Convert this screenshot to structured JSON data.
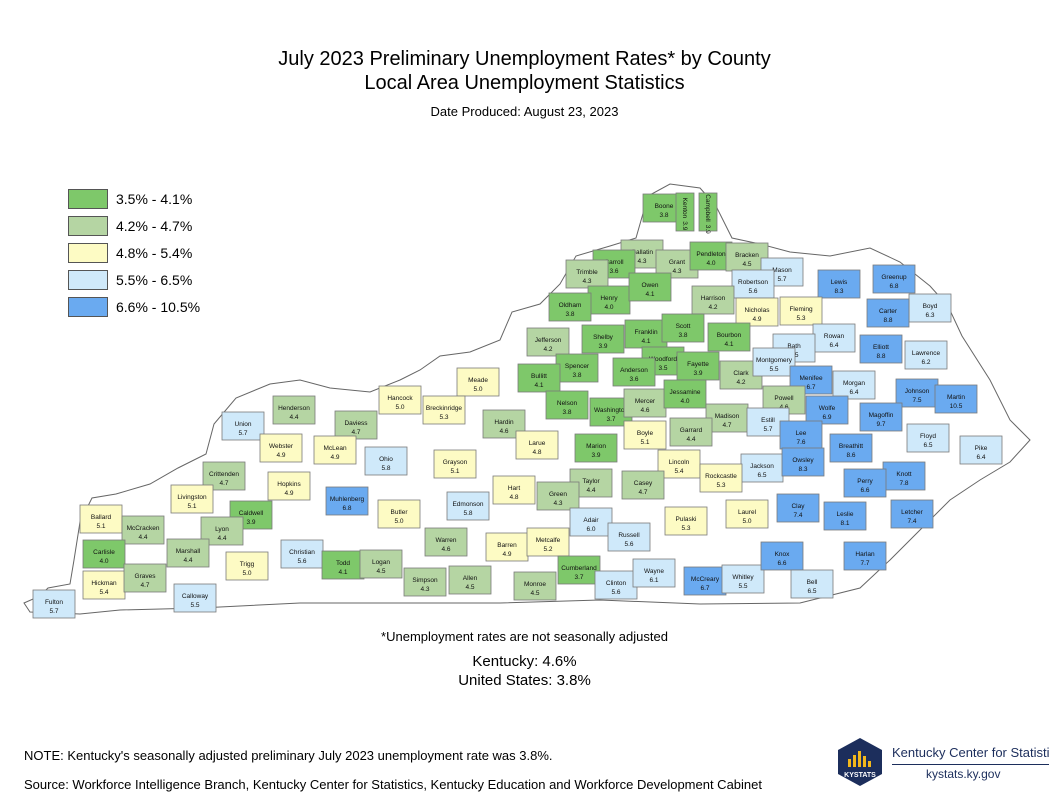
{
  "title": "July 2023 Preliminary Unemployment Rates* by County",
  "subtitle": "Local Area Unemployment Statistics",
  "date_produced": "Date Produced:  August 23, 2023",
  "legend": [
    {
      "label": "3.5% - 4.1%",
      "color": "#7ec86a"
    },
    {
      "label": "4.2% - 4.7%",
      "color": "#b5d5a3"
    },
    {
      "label": "4.8% - 5.4%",
      "color": "#fdfbc4"
    },
    {
      "label": "5.5% - 6.5%",
      "color": "#cfe9fa"
    },
    {
      "label": "6.6% - 10.5%",
      "color": "#6aaaf0"
    }
  ],
  "counties": [
    {
      "name": "Boone",
      "rate": "3.8"
    },
    {
      "name": "Kenton",
      "rate": "3.9"
    },
    {
      "name": "Campbell",
      "rate": "3.9"
    },
    {
      "name": "Gallatin",
      "rate": "4.3"
    },
    {
      "name": "Carroll",
      "rate": "3.6"
    },
    {
      "name": "Trimble",
      "rate": "4.3"
    },
    {
      "name": "Grant",
      "rate": "4.3"
    },
    {
      "name": "Pendleton",
      "rate": "4.0"
    },
    {
      "name": "Bracken",
      "rate": "4.5"
    },
    {
      "name": "Mason",
      "rate": "5.7"
    },
    {
      "name": "Lewis",
      "rate": "8.3"
    },
    {
      "name": "Greenup",
      "rate": "6.8"
    },
    {
      "name": "Boyd",
      "rate": "6.3"
    },
    {
      "name": "Robertson",
      "rate": "5.6"
    },
    {
      "name": "Henry",
      "rate": "4.0"
    },
    {
      "name": "Owen",
      "rate": "4.1"
    },
    {
      "name": "Oldham",
      "rate": "3.8"
    },
    {
      "name": "Harrison",
      "rate": "4.2"
    },
    {
      "name": "Fleming",
      "rate": "5.3"
    },
    {
      "name": "Carter",
      "rate": "8.8"
    },
    {
      "name": "Nicholas",
      "rate": "4.9"
    },
    {
      "name": "Shelby",
      "rate": "3.9"
    },
    {
      "name": "Franklin",
      "rate": "4.1"
    },
    {
      "name": "Scott",
      "rate": "3.8"
    },
    {
      "name": "Bourbon",
      "rate": "4.1"
    },
    {
      "name": "Rowan",
      "rate": "6.4"
    },
    {
      "name": "Elliott",
      "rate": "8.8"
    },
    {
      "name": "Lawrence",
      "rate": "6.2"
    },
    {
      "name": "Jefferson",
      "rate": "4.2"
    },
    {
      "name": "Bath",
      "rate": "6.5"
    },
    {
      "name": "Woodford",
      "rate": "3.5"
    },
    {
      "name": "Spencer",
      "rate": "3.8"
    },
    {
      "name": "Anderson",
      "rate": "3.6"
    },
    {
      "name": "Fayette",
      "rate": "3.9"
    },
    {
      "name": "Clark",
      "rate": "4.2"
    },
    {
      "name": "Montgomery",
      "rate": "5.5"
    },
    {
      "name": "Menifee",
      "rate": "6.7"
    },
    {
      "name": "Morgan",
      "rate": "6.4"
    },
    {
      "name": "Johnson",
      "rate": "7.5"
    },
    {
      "name": "Martin",
      "rate": "10.5"
    },
    {
      "name": "Bullitt",
      "rate": "4.1"
    },
    {
      "name": "Meade",
      "rate": "5.0"
    },
    {
      "name": "Hancock",
      "rate": "5.0"
    },
    {
      "name": "Breckinridge",
      "rate": "5.3"
    },
    {
      "name": "Nelson",
      "rate": "3.8"
    },
    {
      "name": "Washington",
      "rate": "3.7"
    },
    {
      "name": "Mercer",
      "rate": "4.6"
    },
    {
      "name": "Jessamine",
      "rate": "4.0"
    },
    {
      "name": "Powell",
      "rate": "4.6"
    },
    {
      "name": "Wolfe",
      "rate": "6.9"
    },
    {
      "name": "Magoffin",
      "rate": "9.7"
    },
    {
      "name": "Floyd",
      "rate": "6.5"
    },
    {
      "name": "Henderson",
      "rate": "4.4"
    },
    {
      "name": "Daviess",
      "rate": "4.7"
    },
    {
      "name": "Union",
      "rate": "5.7"
    },
    {
      "name": "Hardin",
      "rate": "4.6"
    },
    {
      "name": "Madison",
      "rate": "4.7"
    },
    {
      "name": "Garrard",
      "rate": "4.4"
    },
    {
      "name": "Estill",
      "rate": "5.7"
    },
    {
      "name": "Lee",
      "rate": "7.6"
    },
    {
      "name": "Breathitt",
      "rate": "8.6"
    },
    {
      "name": "Pike",
      "rate": "6.4"
    },
    {
      "name": "Boyle",
      "rate": "5.1"
    },
    {
      "name": "Larue",
      "rate": "4.8"
    },
    {
      "name": "Marion",
      "rate": "3.9"
    },
    {
      "name": "Webster",
      "rate": "4.9"
    },
    {
      "name": "McLean",
      "rate": "4.9"
    },
    {
      "name": "Ohio",
      "rate": "5.8"
    },
    {
      "name": "Grayson",
      "rate": "5.1"
    },
    {
      "name": "Lincoln",
      "rate": "5.4"
    },
    {
      "name": "Jackson",
      "rate": "6.5"
    },
    {
      "name": "Owsley",
      "rate": "8.3"
    },
    {
      "name": "Knott",
      "rate": "7.8"
    },
    {
      "name": "Crittenden",
      "rate": "4.7"
    },
    {
      "name": "Hopkins",
      "rate": "4.9"
    },
    {
      "name": "Hart",
      "rate": "4.8"
    },
    {
      "name": "Taylor",
      "rate": "4.4"
    },
    {
      "name": "Casey",
      "rate": "4.7"
    },
    {
      "name": "Rockcastle",
      "rate": "5.3"
    },
    {
      "name": "Perry",
      "rate": "6.6"
    },
    {
      "name": "Livingston",
      "rate": "5.1"
    },
    {
      "name": "Caldwell",
      "rate": "3.9"
    },
    {
      "name": "Muhlenberg",
      "rate": "6.8"
    },
    {
      "name": "Green",
      "rate": "4.3"
    },
    {
      "name": "Ballard",
      "rate": "5.1"
    },
    {
      "name": "McCracken",
      "rate": "4.4"
    },
    {
      "name": "Lyon",
      "rate": "4.4"
    },
    {
      "name": "Butler",
      "rate": "5.0"
    },
    {
      "name": "Edmonson",
      "rate": "5.8"
    },
    {
      "name": "Adair",
      "rate": "6.0"
    },
    {
      "name": "Pulaski",
      "rate": "5.3"
    },
    {
      "name": "Laurel",
      "rate": "5.0"
    },
    {
      "name": "Clay",
      "rate": "7.4"
    },
    {
      "name": "Leslie",
      "rate": "8.1"
    },
    {
      "name": "Letcher",
      "rate": "7.4"
    },
    {
      "name": "Carlisle",
      "rate": "4.0"
    },
    {
      "name": "Marshall",
      "rate": "4.4"
    },
    {
      "name": "Christian",
      "rate": "5.6"
    },
    {
      "name": "Warren",
      "rate": "4.6"
    },
    {
      "name": "Barren",
      "rate": "4.9"
    },
    {
      "name": "Metcalfe",
      "rate": "5.2"
    },
    {
      "name": "Russell",
      "rate": "5.6"
    },
    {
      "name": "Harlan",
      "rate": "7.7"
    },
    {
      "name": "Hickman",
      "rate": "5.4"
    },
    {
      "name": "Graves",
      "rate": "4.7"
    },
    {
      "name": "Calloway",
      "rate": "5.5"
    },
    {
      "name": "Trigg",
      "rate": "5.0"
    },
    {
      "name": "Todd",
      "rate": "4.1"
    },
    {
      "name": "Logan",
      "rate": "4.5"
    },
    {
      "name": "Simpson",
      "rate": "4.3"
    },
    {
      "name": "Allen",
      "rate": "4.5"
    },
    {
      "name": "Monroe",
      "rate": "4.5"
    },
    {
      "name": "Cumberland",
      "rate": "3.7"
    },
    {
      "name": "Clinton",
      "rate": "5.6"
    },
    {
      "name": "Wayne",
      "rate": "6.1"
    },
    {
      "name": "McCreary",
      "rate": "6.7"
    },
    {
      "name": "Whitley",
      "rate": "5.5"
    },
    {
      "name": "Knox",
      "rate": "6.6"
    },
    {
      "name": "Bell",
      "rate": "6.5"
    },
    {
      "name": "Fulton",
      "rate": "5.7"
    }
  ],
  "footnote": "*Unemployment rates are not seasonally adjusted",
  "kentucky_rate": "Kentucky: 4.6%",
  "us_rate": "United States: 3.8%",
  "note": "NOTE: Kentucky's seasonally adjusted preliminary July 2023 unemployment rate was 3.8%.",
  "source": "Source: Workforce Intelligence Branch, Kentucky Center for Statistics, Kentucky Education and Workforce Development Cabinet",
  "logo": {
    "badge_text": "KYSTATS",
    "name": "Kentucky Center for Statistics",
    "url": "kystats.ky.gov"
  }
}
